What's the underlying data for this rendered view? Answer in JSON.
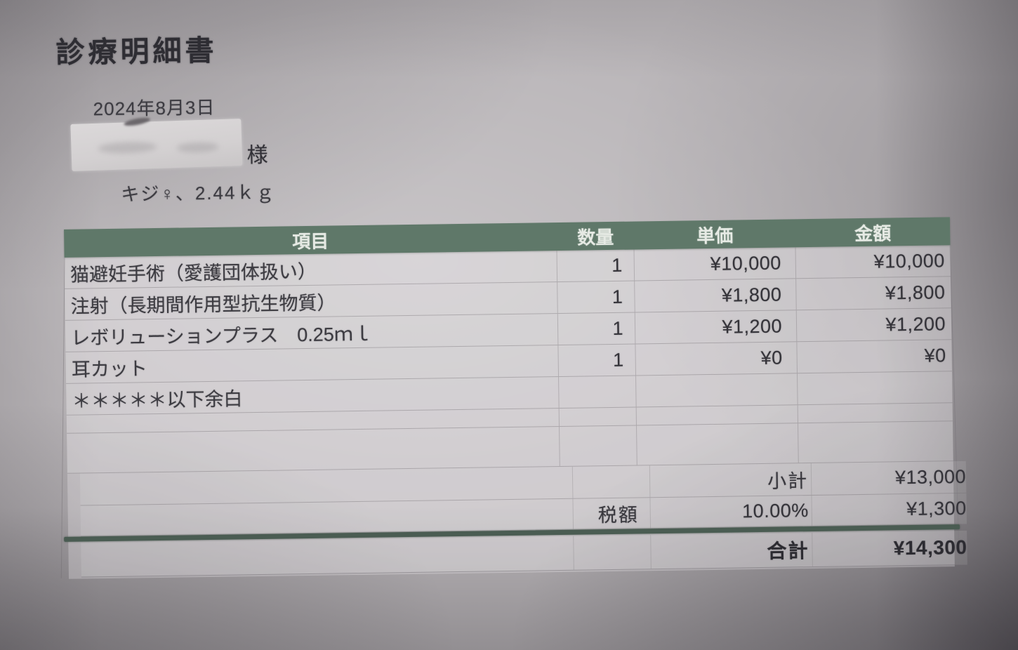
{
  "doc": {
    "title": "診療明細書",
    "date": "2024年8月3日",
    "name_suffix": "様",
    "pet_info": "キジ♀、2.44ｋｇ",
    "table": {
      "headers": [
        "項目",
        "数量",
        "単価",
        "金額"
      ],
      "rows": [
        {
          "item": "猫避妊手術（愛護団体扱い）",
          "qty": "1",
          "unit_price": "¥10,000",
          "amount": "¥10,000"
        },
        {
          "item": "注射（長期間作用型抗生物質）",
          "qty": "1",
          "unit_price": "¥1,800",
          "amount": "¥1,800"
        },
        {
          "item": "レボリューションプラス　0.25ｍｌ",
          "qty": "1",
          "unit_price": "¥1,200",
          "amount": "¥1,200"
        },
        {
          "item": "耳カット",
          "qty": "1",
          "unit_price": "¥0",
          "amount": "¥0"
        },
        {
          "item": "＊＊＊＊＊以下余白",
          "qty": "",
          "unit_price": "",
          "amount": ""
        }
      ],
      "subtotal": {
        "label": "小計",
        "value": "¥13,000"
      },
      "tax": {
        "label": "税額",
        "rate": "10.00%",
        "value": "¥1,300"
      },
      "total": {
        "label": "合計",
        "value": "¥14,300"
      }
    },
    "colors": {
      "header_band_green": "#5f7869",
      "total_rule_green": "#4a5c52",
      "paper_gray": "#b9b5b8"
    }
  }
}
